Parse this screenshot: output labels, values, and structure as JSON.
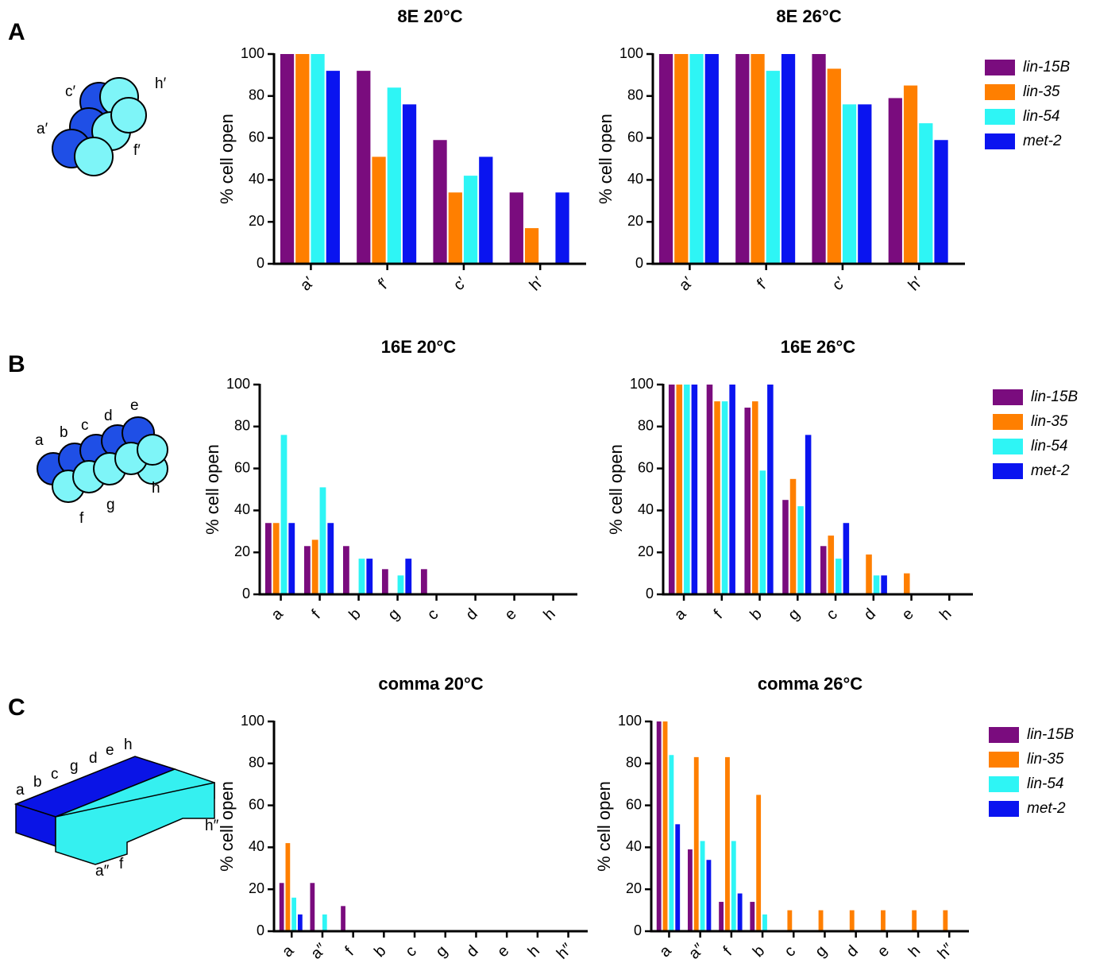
{
  "chart_data": [
    {
      "type": "bar",
      "title": "8E 20°C",
      "ylabel": "% cell open",
      "categories": [
        "a′",
        "f′",
        "c′",
        "h′"
      ],
      "ylim": [
        0,
        100
      ],
      "yticks": [
        0,
        20,
        40,
        60,
        80,
        100
      ],
      "legend": false,
      "series": [
        {
          "name": "lin-15B",
          "color": "#7a0c7e",
          "values": [
            100,
            92,
            59,
            34
          ]
        },
        {
          "name": "lin-35",
          "color": "#ff7f00",
          "values": [
            100,
            51,
            34,
            17
          ]
        },
        {
          "name": "lin-54",
          "color": "#2ef5f5",
          "values": [
            100,
            84,
            42,
            0
          ]
        },
        {
          "name": "met-2",
          "color": "#0a14f0",
          "values": [
            92,
            76,
            51,
            34
          ]
        }
      ]
    },
    {
      "type": "bar",
      "title": "8E 26°C",
      "ylabel": "% cell open",
      "categories": [
        "a′",
        "f′",
        "c′",
        "h′"
      ],
      "ylim": [
        0,
        100
      ],
      "yticks": [
        0,
        20,
        40,
        60,
        80,
        100
      ],
      "legend": true,
      "series": [
        {
          "name": "lin-15B",
          "color": "#7a0c7e",
          "values": [
            100,
            100,
            100,
            79
          ]
        },
        {
          "name": "lin-35",
          "color": "#ff7f00",
          "values": [
            100,
            100,
            93,
            85
          ]
        },
        {
          "name": "lin-54",
          "color": "#2ef5f5",
          "values": [
            100,
            92,
            76,
            67
          ]
        },
        {
          "name": "met-2",
          "color": "#0a14f0",
          "values": [
            100,
            100,
            76,
            59
          ]
        }
      ]
    },
    {
      "type": "bar",
      "title": "16E 20°C",
      "ylabel": "% cell open",
      "categories": [
        "a",
        "f",
        "b",
        "g",
        "c",
        "d",
        "e",
        "h"
      ],
      "ylim": [
        0,
        100
      ],
      "yticks": [
        0,
        20,
        40,
        60,
        80,
        100
      ],
      "legend": false,
      "series": [
        {
          "name": "lin-15B",
          "color": "#7a0c7e",
          "values": [
            34,
            23,
            23,
            12,
            12,
            0,
            0,
            0
          ]
        },
        {
          "name": "lin-35",
          "color": "#ff7f00",
          "values": [
            34,
            26,
            0,
            0,
            0,
            0,
            0,
            0
          ]
        },
        {
          "name": "lin-54",
          "color": "#2ef5f5",
          "values": [
            76,
            51,
            17,
            9,
            0,
            0,
            0,
            0
          ]
        },
        {
          "name": "met-2",
          "color": "#0a14f0",
          "values": [
            34,
            34,
            17,
            17,
            0,
            0,
            0,
            0
          ]
        }
      ]
    },
    {
      "type": "bar",
      "title": "16E 26°C",
      "ylabel": "% cell open",
      "categories": [
        "a",
        "f",
        "b",
        "g",
        "c",
        "d",
        "e",
        "h"
      ],
      "ylim": [
        0,
        100
      ],
      "yticks": [
        0,
        20,
        40,
        60,
        80,
        100
      ],
      "legend": true,
      "series": [
        {
          "name": "lin-15B",
          "color": "#7a0c7e",
          "values": [
            100,
            100,
            89,
            45,
            23,
            0,
            0,
            0
          ]
        },
        {
          "name": "lin-35",
          "color": "#ff7f00",
          "values": [
            100,
            92,
            92,
            55,
            28,
            19,
            10,
            0
          ]
        },
        {
          "name": "lin-54",
          "color": "#2ef5f5",
          "values": [
            100,
            92,
            59,
            42,
            17,
            9,
            0,
            0
          ]
        },
        {
          "name": "met-2",
          "color": "#0a14f0",
          "values": [
            100,
            100,
            100,
            76,
            34,
            9,
            0,
            0
          ]
        }
      ]
    },
    {
      "type": "bar",
      "title": "comma 20°C",
      "ylabel": "% cell open",
      "categories": [
        "a",
        "a″",
        "f",
        "b",
        "c",
        "g",
        "d",
        "e",
        "h",
        "h″"
      ],
      "ylim": [
        0,
        100
      ],
      "yticks": [
        0,
        20,
        40,
        60,
        80,
        100
      ],
      "legend": false,
      "series": [
        {
          "name": "lin-15B",
          "color": "#7a0c7e",
          "values": [
            23,
            23,
            12,
            0,
            0,
            0,
            0,
            0,
            0,
            0
          ]
        },
        {
          "name": "lin-35",
          "color": "#ff7f00",
          "values": [
            42,
            0,
            0,
            0,
            0,
            0,
            0,
            0,
            0,
            0
          ]
        },
        {
          "name": "lin-54",
          "color": "#2ef5f5",
          "values": [
            16,
            8,
            0,
            0,
            0,
            0,
            0,
            0,
            0,
            0
          ]
        },
        {
          "name": "met-2",
          "color": "#0a14f0",
          "values": [
            8,
            0,
            0,
            0,
            0,
            0,
            0,
            0,
            0,
            0
          ]
        }
      ]
    },
    {
      "type": "bar",
      "title": "comma 26°C",
      "ylabel": "% cell open",
      "categories": [
        "a",
        "a″",
        "f",
        "b",
        "c",
        "g",
        "d",
        "e",
        "h",
        "h″"
      ],
      "ylim": [
        0,
        100
      ],
      "yticks": [
        0,
        20,
        40,
        60,
        80,
        100
      ],
      "legend": true,
      "series": [
        {
          "name": "lin-15B",
          "color": "#7a0c7e",
          "values": [
            100,
            39,
            14,
            14,
            0,
            0,
            0,
            0,
            0,
            0
          ]
        },
        {
          "name": "lin-35",
          "color": "#ff7f00",
          "values": [
            100,
            83,
            83,
            65,
            10,
            10,
            10,
            10,
            10,
            10
          ]
        },
        {
          "name": "lin-54",
          "color": "#2ef5f5",
          "values": [
            84,
            43,
            43,
            8,
            0,
            0,
            0,
            0,
            0,
            0
          ]
        },
        {
          "name": "met-2",
          "color": "#0a14f0",
          "values": [
            51,
            34,
            18,
            0,
            0,
            0,
            0,
            0,
            0,
            0
          ]
        }
      ]
    }
  ],
  "panels": [
    {
      "label": "A",
      "labels": [
        "c′",
        "h′",
        "a′",
        "f′"
      ]
    },
    {
      "label": "B",
      "labels": [
        "a",
        "b",
        "c",
        "d",
        "e",
        "f",
        "g",
        "h"
      ]
    },
    {
      "label": "C",
      "labels": [
        "a",
        "b",
        "c",
        "g",
        "d",
        "e",
        "h",
        "h″",
        "a″",
        "f"
      ]
    }
  ]
}
